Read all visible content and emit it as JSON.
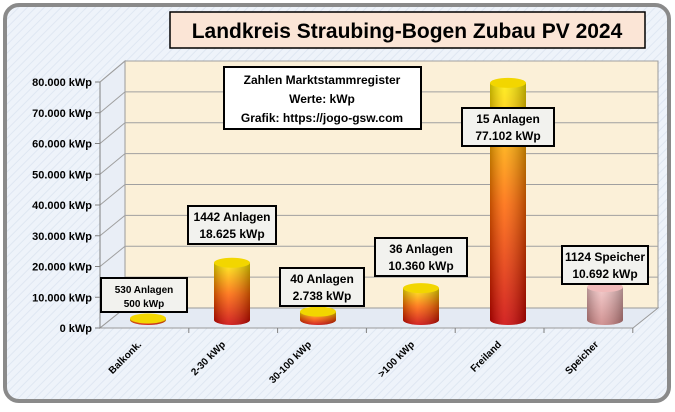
{
  "chart_data": {
    "type": "bar",
    "title": "Landkreis Straubing-Bogen Zubau PV 2024",
    "info_lines": [
      "Zahlen Marktstammregister",
      "Werte: kWp",
      "Grafik: https://jogo-gsw.com"
    ],
    "categories": [
      "Balkonk.",
      "2-30 kWp",
      "30-100 kWp",
      ">100 kWp",
      "Freiland",
      "Speicher"
    ],
    "values": [
      500,
      18625,
      2738,
      10360,
      77102,
      10692
    ],
    "labels": [
      [
        "530 Anlagen",
        "500 kWp"
      ],
      [
        "1442 Anlagen",
        "18.625 kWp"
      ],
      [
        "40 Anlagen",
        "2.738 kWp"
      ],
      [
        "36 Anlagen",
        "10.360 kWp"
      ],
      [
        "15 Anlagen",
        "77.102 kWp"
      ],
      [
        "1124 Speicher",
        "10.692 kWp"
      ]
    ],
    "ylim": [
      0,
      80000
    ],
    "yticks": [
      "0 kWp",
      "10.000 kWp",
      "20.000 kWp",
      "30.000 kWp",
      "40.000 kWp",
      "50.000 kWp",
      "60.000 kWp",
      "70.000 kWp",
      "80.000 kWp"
    ],
    "ylabel": "",
    "xlabel": "",
    "grid": true,
    "colors": {
      "bar_top": "#ffee00",
      "bar_bottom": "#cc0000",
      "storage_top": "#f4c7c7",
      "storage_bottom": "#c98080",
      "wall": "#fbf0d8",
      "title_box": "#fbe5d6"
    }
  }
}
